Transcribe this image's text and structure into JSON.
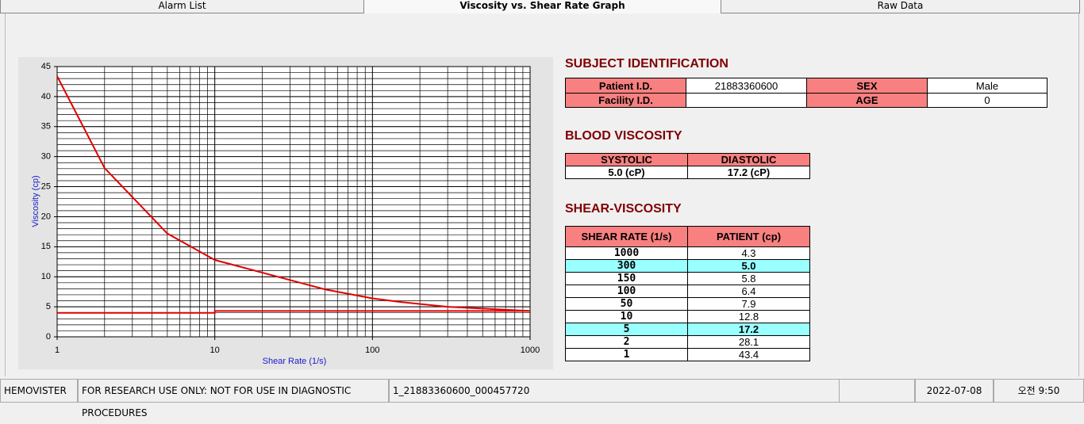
{
  "tabs": [
    "Alarm List",
    "Viscosity vs. Shear Rate Graph",
    "Raw Data"
  ],
  "active_tab": 1,
  "chart_data": {
    "type": "line",
    "x_label": "Shear Rate (1/s)",
    "y_label": "Viscosity (cp)",
    "x_scale": "log",
    "xlim": [
      1,
      1000
    ],
    "ylim": [
      0,
      45
    ],
    "xticks": [
      1,
      10,
      100,
      1000
    ],
    "yticks": [
      0,
      5,
      10,
      15,
      20,
      25,
      30,
      35,
      40,
      45
    ],
    "grid": true,
    "series": [
      {
        "color": "#e00000",
        "x": [
          1,
          2,
          5,
          10,
          50,
          100,
          150,
          300,
          1000
        ],
        "values": [
          43.4,
          28.1,
          17.2,
          12.8,
          7.9,
          6.4,
          5.8,
          5.0,
          4.3
        ]
      },
      {
        "color": "#e00000",
        "x": [
          1,
          10,
          10,
          1000
        ],
        "values": [
          4.0,
          4.0,
          4.3,
          4.3
        ]
      }
    ]
  },
  "subject": {
    "title": "SUBJECT IDENTIFICATION",
    "patient_id_label": "Patient I.D.",
    "patient_id": "21883360600",
    "sex_label": "SEX",
    "sex": "Male",
    "facility_id_label": "Facility I.D.",
    "age_label": "AGE",
    "age": "0"
  },
  "blood": {
    "title": "BLOOD VISCOSITY",
    "headers": [
      "SYSTOLIC",
      "DIASTOLIC"
    ],
    "values": [
      "5.0 (cP)",
      "17.2 (cP)"
    ]
  },
  "shear": {
    "title": "SHEAR-VISCOSITY",
    "headers": [
      "SHEAR RATE (1/s)",
      "PATIENT (cp)"
    ],
    "rows": [
      [
        "1000",
        "4.3"
      ],
      [
        "300",
        "5.0"
      ],
      [
        "150",
        "5.8"
      ],
      [
        "100",
        "6.4"
      ],
      [
        "50",
        "7.9"
      ],
      [
        "10",
        "12.8"
      ],
      [
        "5",
        "17.2"
      ],
      [
        "2",
        "28.1"
      ],
      [
        "1",
        "43.4"
      ]
    ],
    "highlight": [
      1,
      6
    ]
  },
  "status": [
    "HEMOVISTER",
    "FOR RESEARCH USE ONLY: NOT FOR USE IN DIAGNOSTIC PROCEDURES",
    "1_21883360600_000457720",
    "2022-07-08",
    "오전 9:50"
  ]
}
